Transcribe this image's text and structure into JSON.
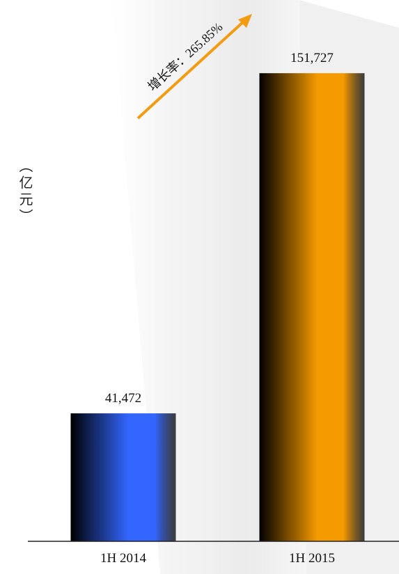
{
  "chart_data": {
    "type": "bar",
    "y_label": "（亿元）",
    "annotation": "增长率：265.85%",
    "categories": [
      "1H 2014",
      "1H 2015"
    ],
    "values": [
      41472,
      151727
    ],
    "value_labels": [
      "41,472",
      "151,727"
    ],
    "colors": [
      "#3366ff",
      "#f59a00"
    ],
    "ylim": [
      0,
      175000
    ]
  }
}
